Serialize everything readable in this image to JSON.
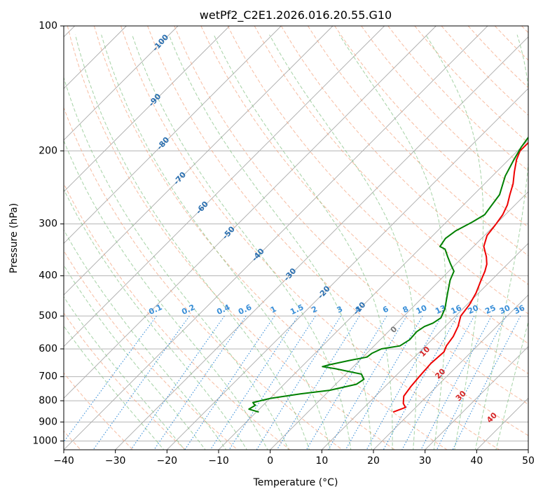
{
  "chart_data": {
    "type": "line",
    "title": "wetPf2_C2E1.2026.016.20.55.G10",
    "xlabel": "Temperature (°C)",
    "ylabel": "Pressure (hPa)",
    "xlim": [
      -40,
      50
    ],
    "ylim": [
      1050,
      100
    ],
    "x_ticks": [
      -40,
      -30,
      -20,
      -10,
      0,
      10,
      20,
      30,
      40,
      50
    ],
    "y_ticks": [
      100,
      200,
      300,
      400,
      500,
      600,
      700,
      800,
      900,
      1000
    ],
    "grid": true,
    "series": [
      {
        "name": "Temperature",
        "color": "#ee0000",
        "points": [
          [
            14.5,
            100
          ],
          [
            13.0,
            120
          ],
          [
            8.0,
            138
          ],
          [
            2.0,
            150
          ],
          [
            -2.0,
            160
          ],
          [
            -6.0,
            172
          ],
          [
            -9.5,
            186
          ],
          [
            -9.5,
            200
          ],
          [
            -8.5,
            210
          ],
          [
            -6.5,
            225
          ],
          [
            -4.5,
            240
          ],
          [
            -3.0,
            255
          ],
          [
            -1.5,
            270
          ],
          [
            -0.5,
            285
          ],
          [
            0.0,
            300
          ],
          [
            0.5,
            320
          ],
          [
            2.0,
            340
          ],
          [
            4.5,
            360
          ],
          [
            6.0,
            375
          ],
          [
            7.0,
            390
          ],
          [
            8.0,
            410
          ],
          [
            9.5,
            440
          ],
          [
            10.5,
            470
          ],
          [
            11.0,
            500
          ],
          [
            12.5,
            530
          ],
          [
            13.5,
            560
          ],
          [
            14.0,
            590
          ],
          [
            14.7,
            610
          ],
          [
            14.4,
            650
          ],
          [
            14.7,
            700
          ],
          [
            15.0,
            740
          ],
          [
            15.5,
            780
          ],
          [
            16.8,
            812
          ],
          [
            18.0,
            830
          ],
          [
            17.0,
            845
          ],
          [
            16.5,
            852
          ]
        ]
      },
      {
        "name": "Dewpoint",
        "color": "#008000",
        "points": [
          [
            0.5,
            100
          ],
          [
            -3.0,
            112
          ],
          [
            -5.5,
            122
          ],
          [
            -6.5,
            134
          ],
          [
            -8.0,
            150
          ],
          [
            -9.0,
            165
          ],
          [
            -10.5,
            178
          ],
          [
            -10.5,
            186
          ],
          [
            -10.0,
            196
          ],
          [
            -9.0,
            210
          ],
          [
            -7.5,
            230
          ],
          [
            -5.0,
            255
          ],
          [
            -4.5,
            270
          ],
          [
            -4.0,
            285
          ],
          [
            -5.0,
            297
          ],
          [
            -6.5,
            312
          ],
          [
            -7.0,
            325
          ],
          [
            -6.5,
            340
          ],
          [
            -5.0,
            345
          ],
          [
            -3.0,
            360
          ],
          [
            -1.0,
            375
          ],
          [
            1.0,
            390
          ],
          [
            2.0,
            410
          ],
          [
            4.0,
            440
          ],
          [
            6.5,
            480
          ],
          [
            7.5,
            505
          ],
          [
            7.0,
            520
          ],
          [
            6.0,
            530
          ],
          [
            5.5,
            545
          ],
          [
            5.7,
            570
          ],
          [
            5.0,
            590
          ],
          [
            2.0,
            600
          ],
          [
            1.0,
            615
          ],
          [
            0.8,
            628
          ],
          [
            -2.0,
            640
          ],
          [
            -5.0,
            655
          ],
          [
            -6.0,
            662
          ],
          [
            -3.0,
            670
          ],
          [
            3.0,
            690
          ],
          [
            4.5,
            710
          ],
          [
            4.0,
            730
          ],
          [
            0.0,
            755
          ],
          [
            -5.0,
            770
          ],
          [
            -10.0,
            790
          ],
          [
            -12.5,
            808
          ],
          [
            -12.0,
            815
          ],
          [
            -11.5,
            820
          ],
          [
            -12.0,
            838
          ],
          [
            -9.5,
            852
          ]
        ]
      }
    ],
    "dry_adiabat_labels": [
      "-100",
      "-90",
      "-80",
      "-70",
      "-60",
      "-50",
      "-40",
      "-30",
      "-20",
      "-10"
    ],
    "mixing_ratio_labels": [
      "0.1",
      "0.2",
      "0.4",
      "0.6",
      "1",
      "1.5",
      "2",
      "3",
      "4",
      "6",
      "8",
      "10",
      "13",
      "16",
      "20",
      "25",
      "30",
      "36"
    ],
    "moist_adiabat_labels": [
      "0",
      "10",
      "20",
      "30",
      "40"
    ],
    "colors": {
      "isotherm": "#aaaaaa",
      "isobar": "#aaaaaa",
      "dry_adiabat": "#f4a582",
      "moist_adiabat": "#7fbf7f",
      "mixing_ratio": "#3a8fd8",
      "dry_label": "#2a6fb0",
      "moist_label_warm": "#d62728",
      "moist_label_zero": "#777777"
    }
  }
}
